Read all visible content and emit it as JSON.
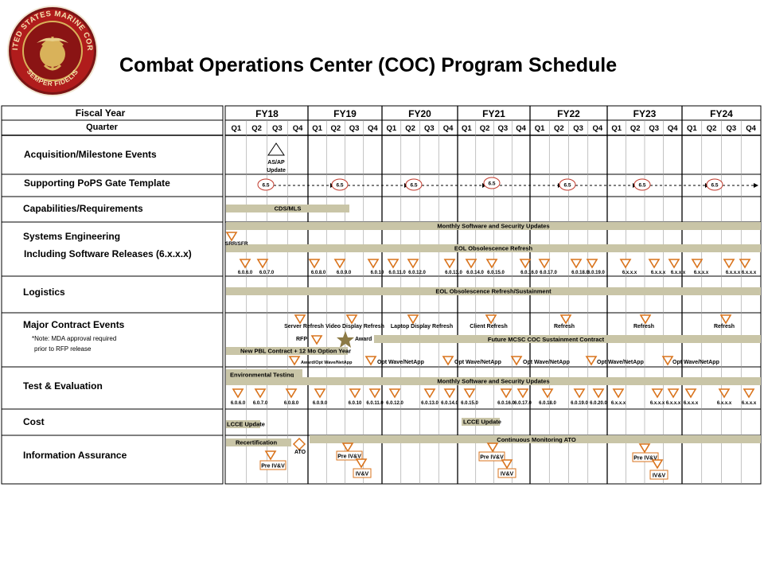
{
  "title": "Combat Operations Center (COC) Program Schedule",
  "logo": {
    "text_top": "UNITED STATES MARINE CORPS",
    "text_bottom": "SEMPER FIDELIS",
    "icon": "usmc-seal-icon",
    "colors": {
      "ring": "#b01c1c",
      "ring_dark": "#6e1010",
      "gold": "#d9b25a",
      "center": "#8a1414"
    }
  },
  "colors": {
    "bar": "#c9c5a7",
    "milestone_stroke": "#d9731c",
    "oval_stroke": "#c0392b",
    "star": "#8c7a45",
    "grid": "#9a9a9a"
  },
  "header": {
    "fiscal_year_label": "Fiscal Year",
    "quarter_label": "Quarter",
    "years": [
      "FY18",
      "FY19",
      "FY20",
      "FY21",
      "FY22",
      "FY23",
      "FY24"
    ],
    "quarters": [
      "Q1",
      "Q2",
      "Q3",
      "Q4"
    ]
  },
  "rows": [
    {
      "label": "Acquisition/Milestone Events"
    },
    {
      "label": "Supporting  PoPS Gate Template"
    },
    {
      "label": "Capabilities/Requirements"
    },
    {
      "label": "Systems Engineering",
      "label2": "Including  Software Releases (6.x.x.x)"
    },
    {
      "label": "Logistics"
    },
    {
      "label": "Major Contract Events",
      "note1": "*Note: MDA approval  required",
      "note2": "prior to RFP release"
    },
    {
      "label": "Test & Evaluation"
    },
    {
      "label": "Cost"
    },
    {
      "label": "Information Assurance"
    }
  ],
  "bars": [
    {
      "text": "CDS/MLS"
    },
    {
      "text": "Monthly Software and Security Updates"
    },
    {
      "text": "EOL Obsolescence Refresh"
    },
    {
      "text": "EOL Obsolescence Refresh/Sustainment"
    },
    {
      "text": "New PBL Contract + 12 Mo Option Year"
    },
    {
      "text": "Future MCSC COC Sustainment Contract"
    },
    {
      "text": "Environmental Testing"
    },
    {
      "text": "Monthly Software and Security Updates"
    },
    {
      "text": "LCCE Update"
    },
    {
      "text": "LCCE Update"
    },
    {
      "text": "Recertification"
    },
    {
      "text": "Continuous Monitoring ATO"
    }
  ],
  "gate_label": "6.5",
  "acq_event": {
    "line1": "AS/AP",
    "line2": "Update"
  },
  "se_markers": {
    "first_label": "SRR/SFR",
    "labels": [
      "6.0.6.0",
      "6.0.7.0",
      "6.0.8.0",
      "6.0.9.0",
      "6.0.10",
      "6.0.11.0",
      "6.0.12.0",
      "6.0.13.0",
      "6.0.14.0",
      "6.0.15.0",
      "6.0.16.0",
      "6.0.17.0",
      "6.0.18.0",
      "6.0.19.0",
      "6.x.x.x",
      "6.x.x.x",
      "6.x.x.x",
      "6.x.x.x",
      "6.x.x.x",
      "6.x.x.x"
    ]
  },
  "contract_events": {
    "refresh_labels": [
      "Server  Refresh",
      "Video Display  Refresh",
      "Laptop Display Refresh",
      "Client Refresh",
      "Refresh",
      "Refresh",
      "Refresh"
    ],
    "rfp": "RFP",
    "award": "Award",
    "optwave": [
      "Award/Opt Wave/NetApp",
      "Opt Wave/NetApp",
      "Opt Wave/NetApp",
      "Opt Wave/NetApp",
      "Opt Wave/NetApp",
      "Opt Wave/NetApp"
    ]
  },
  "te_markers": {
    "labels": [
      "6.0.6.0",
      "6.0.7.0",
      "6.0.8.0",
      "6.0.9.0",
      "6.0.10",
      "6.0.11.0",
      "6.0.12.0",
      "6.0.13.0",
      "6.0.14.0",
      "6.0.15.0",
      "6.0.16.0",
      "6.0.17.0",
      "6.0.18.0",
      "6.0.19.0",
      "6.0.20.0",
      "6.x.x.x",
      "6.x.x.x",
      "6.x.x.x",
      "6.x.x.x",
      "6.x.x.x",
      "6.x.x.x",
      "6.x.x.x"
    ]
  },
  "ia": {
    "ato": "ATO",
    "pre_ivv": "Pre IV&V",
    "ivv": "IV&V"
  }
}
